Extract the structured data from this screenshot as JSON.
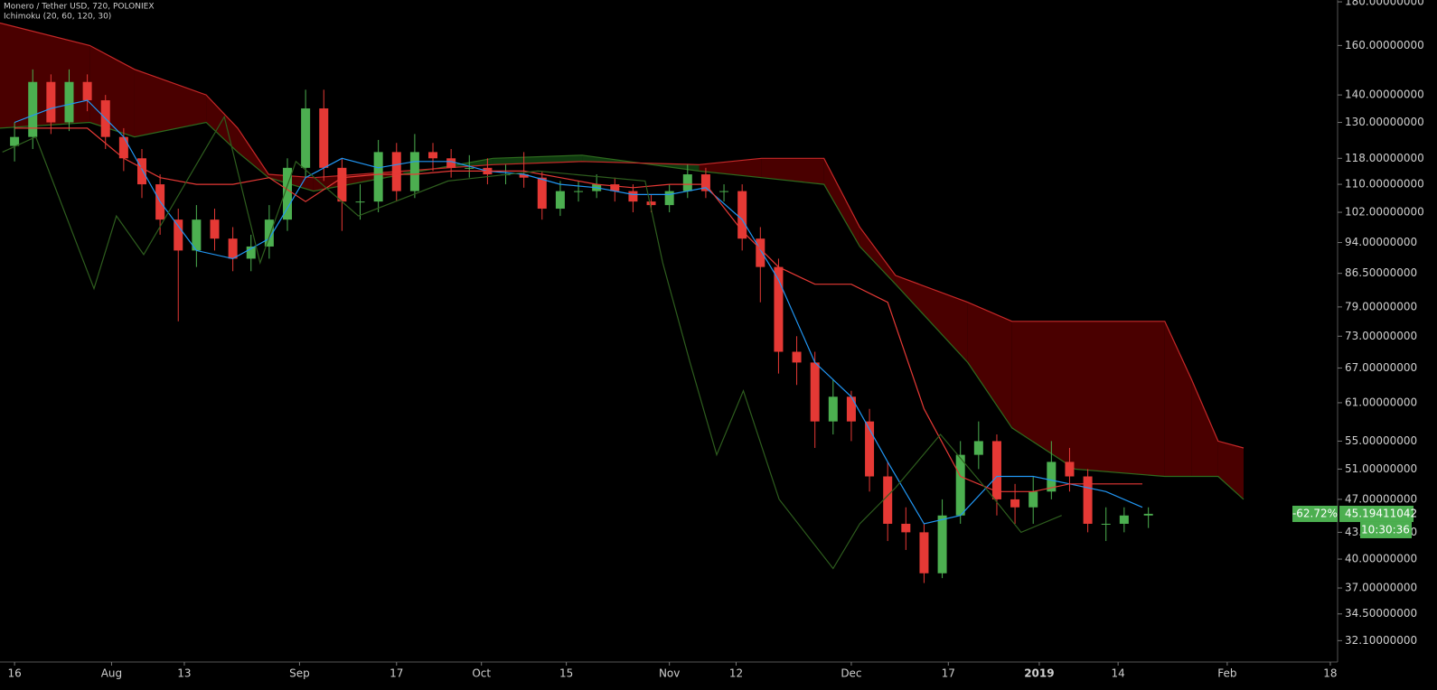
{
  "chart_data": {
    "type": "candlestick",
    "title": "Monero / Tether USD, 720, POLONIEX",
    "indicator_label": "Ichimoku (20, 60, 120, 30)",
    "log_scale": true,
    "grid": false,
    "up_color": "#4caf50",
    "down_color": "#e53935",
    "xlim": [
      -2.4,
      218.2
    ],
    "xticks": [
      {
        "value": 0,
        "label": "16"
      },
      {
        "value": 16,
        "label": "Aug"
      },
      {
        "value": 28,
        "label": "13"
      },
      {
        "value": 47,
        "label": "Sep"
      },
      {
        "value": 63,
        "label": "17"
      },
      {
        "value": 77,
        "label": "Oct"
      },
      {
        "value": 91,
        "label": "15"
      },
      {
        "value": 108,
        "label": "Nov"
      },
      {
        "value": 119,
        "label": "12"
      },
      {
        "value": 138,
        "label": "Dec"
      },
      {
        "value": 154,
        "label": "17"
      },
      {
        "value": 169,
        "label": "2019"
      },
      {
        "value": 182,
        "label": "14"
      },
      {
        "value": 200,
        "label": "Feb"
      },
      {
        "value": 217,
        "label": "18"
      }
    ],
    "ylim": [
      30.3,
      180.9
    ],
    "yticks": [
      {
        "value": 180,
        "label": "180.00000000"
      },
      {
        "value": 160,
        "label": "160.00000000"
      },
      {
        "value": 140,
        "label": "140.00000000"
      },
      {
        "value": 130,
        "label": "130.00000000"
      },
      {
        "value": 118,
        "label": "118.00000000"
      },
      {
        "value": 110,
        "label": "110.00000000"
      },
      {
        "value": 102,
        "label": "102.00000000"
      },
      {
        "value": 94,
        "label": "94.00000000"
      },
      {
        "value": 86.5,
        "label": "86.50000000"
      },
      {
        "value": 79,
        "label": "79.00000000"
      },
      {
        "value": 73,
        "label": "73.00000000"
      },
      {
        "value": 67,
        "label": "67.00000000"
      },
      {
        "value": 61,
        "label": "61.00000000"
      },
      {
        "value": 55,
        "label": "55.00000000"
      },
      {
        "value": 51,
        "label": "51.00000000"
      },
      {
        "value": 47,
        "label": "47.00000000"
      },
      {
        "value": 43,
        "label": "43.00000000"
      },
      {
        "value": 40,
        "label": "40.00000000"
      },
      {
        "value": 37,
        "label": "37.00000000"
      },
      {
        "value": 34.5,
        "label": "34.50000000"
      },
      {
        "value": 32.1,
        "label": "32.10000000"
      }
    ],
    "x": [
      0,
      3,
      6,
      9,
      12,
      15,
      18,
      21,
      24,
      27,
      30,
      33,
      36,
      39,
      42,
      45,
      48,
      51,
      54,
      57,
      60,
      63,
      66,
      69,
      72,
      75,
      78,
      81,
      84,
      87,
      90,
      93,
      96,
      99,
      102,
      105,
      108,
      111,
      114,
      117,
      120,
      123,
      126,
      129,
      132,
      135,
      138,
      141,
      144,
      147,
      150,
      153,
      156,
      159,
      162,
      165,
      168,
      171,
      174,
      177,
      180,
      183,
      187
    ],
    "open": [
      122,
      125,
      145,
      130,
      145,
      138,
      125,
      118,
      110,
      100,
      92,
      100,
      95,
      90,
      93,
      100,
      115,
      135,
      115,
      105,
      105,
      120,
      108,
      120,
      118,
      115,
      115,
      113,
      113,
      112,
      103,
      108,
      108,
      110,
      108,
      105,
      104,
      108,
      113,
      108,
      108,
      95,
      88,
      70,
      68,
      58,
      62,
      58,
      50,
      44,
      43,
      38.5,
      45,
      53,
      55,
      47,
      46,
      48,
      52,
      50,
      44,
      44,
      45
    ],
    "high": [
      130,
      150,
      148,
      150,
      148,
      140,
      128,
      121,
      113,
      103,
      104,
      103,
      98,
      96,
      104,
      118,
      142,
      142,
      118,
      110,
      124,
      123,
      126,
      123,
      121,
      119,
      118,
      116,
      120,
      114,
      111,
      111,
      113,
      112,
      110,
      107,
      110,
      116,
      115,
      110,
      110,
      98,
      90,
      73,
      70,
      65,
      63,
      60,
      52,
      46,
      44,
      47,
      55,
      58,
      56,
      49,
      50,
      55,
      54,
      51,
      46,
      46,
      46
    ],
    "low": [
      117,
      121,
      126,
      127,
      134,
      121,
      114,
      106,
      96,
      76,
      88,
      92,
      87,
      87,
      90,
      97,
      112,
      111,
      97,
      100,
      102,
      105,
      106,
      114,
      112,
      112,
      110,
      110,
      109,
      100,
      101,
      105,
      106,
      105,
      102,
      102,
      102,
      106,
      106,
      105,
      92,
      80,
      66,
      64,
      54,
      56,
      55,
      48,
      42,
      41,
      37.5,
      38,
      44,
      51,
      45,
      44,
      44,
      47,
      48,
      43,
      42,
      43,
      43.5
    ],
    "close": [
      125,
      145,
      130,
      145,
      138,
      125,
      118,
      110,
      100,
      92,
      100,
      95,
      90,
      93,
      100,
      115,
      135,
      115,
      105,
      105,
      120,
      108,
      120,
      118,
      115,
      115,
      113,
      113,
      112,
      103,
      108,
      108,
      110,
      108,
      105,
      104,
      108,
      113,
      108,
      108,
      95,
      88,
      70,
      68,
      58,
      62,
      58,
      50,
      44,
      43,
      38.5,
      45,
      53,
      55,
      47,
      46,
      48,
      52,
      50,
      44,
      44,
      45,
      45.2
    ],
    "overlays": [
      {
        "color": "#2196f3",
        "x": [
          0,
          6,
          12,
          18,
          24,
          30,
          36,
          42,
          48,
          54,
          60,
          66,
          72,
          78,
          84,
          90,
          96,
          102,
          108,
          114,
          120,
          126,
          132,
          138,
          144,
          150,
          156,
          162,
          168,
          174,
          180,
          186
        ],
        "values": [
          130,
          135,
          138,
          125,
          105,
          92,
          90,
          95,
          112,
          118,
          115,
          117,
          117,
          114,
          113,
          110,
          109,
          107,
          107,
          109,
          100,
          85,
          68,
          62,
          52,
          44,
          45,
          50,
          50,
          49,
          48,
          46
        ]
      },
      {
        "color": "#e53935",
        "x": [
          0,
          6,
          12,
          18,
          24,
          30,
          36,
          42,
          48,
          54,
          60,
          66,
          72,
          78,
          84,
          90,
          96,
          102,
          108,
          114,
          120,
          126,
          132,
          138,
          144,
          150,
          156,
          162,
          168,
          174,
          180,
          186
        ],
        "values": [
          128,
          128,
          128,
          118,
          112,
          110,
          110,
          112,
          105,
          112,
          113,
          113,
          114,
          114,
          114,
          112,
          110,
          109,
          110,
          110,
          97,
          88,
          84,
          84,
          80,
          60,
          50,
          48,
          48,
          49,
          49,
          49
        ]
      },
      {
        "color": "#2e5e1e",
        "x": [
          -2,
          3.5,
          13.1,
          16.8,
          21.3,
          34.6,
          40.5,
          46.4,
          56.7,
          71.5,
          86.3,
          104,
          106.9,
          111.4,
          115.8,
          120.2,
          126.1,
          135,
          139.4,
          145.3,
          152.7,
          160.1,
          166,
          172.7
        ],
        "values": [
          120,
          125,
          83,
          101,
          91,
          132,
          89,
          117,
          101,
          111,
          114,
          111,
          89,
          68,
          53,
          63,
          47,
          39,
          44,
          48.5,
          56,
          48.5,
          43,
          45
        ]
      }
    ],
    "cloud": {
      "up_color": "#0f3a0f",
      "down_color": "#4a0000",
      "a_color": "#2e6b1e",
      "b_color": "#c62828",
      "x": [
        -2.4,
        12.4,
        19.8,
        31.6,
        36.8,
        41.9,
        49.3,
        64.1,
        78.9,
        93.6,
        112.9,
        123.2,
        133.5,
        139.4,
        145.3,
        157.2,
        164.5,
        174.9,
        189.7,
        194.1,
        198.5,
        202.7
      ],
      "span_a": [
        128,
        130,
        125,
        130,
        120,
        112,
        108,
        113,
        118,
        119,
        114,
        112,
        110,
        93,
        84,
        68,
        57,
        51,
        50,
        50,
        50,
        47
      ],
      "span_b": [
        170,
        160,
        150,
        140,
        128,
        113,
        112,
        114,
        116,
        117,
        116,
        118,
        118,
        98,
        86,
        80,
        76,
        76,
        76,
        65,
        55,
        54
      ]
    },
    "last_price": 45.19411042,
    "last_change": {
      "value": -62.72,
      "label": "-62.72%"
    },
    "countdown": "10:30:36"
  }
}
